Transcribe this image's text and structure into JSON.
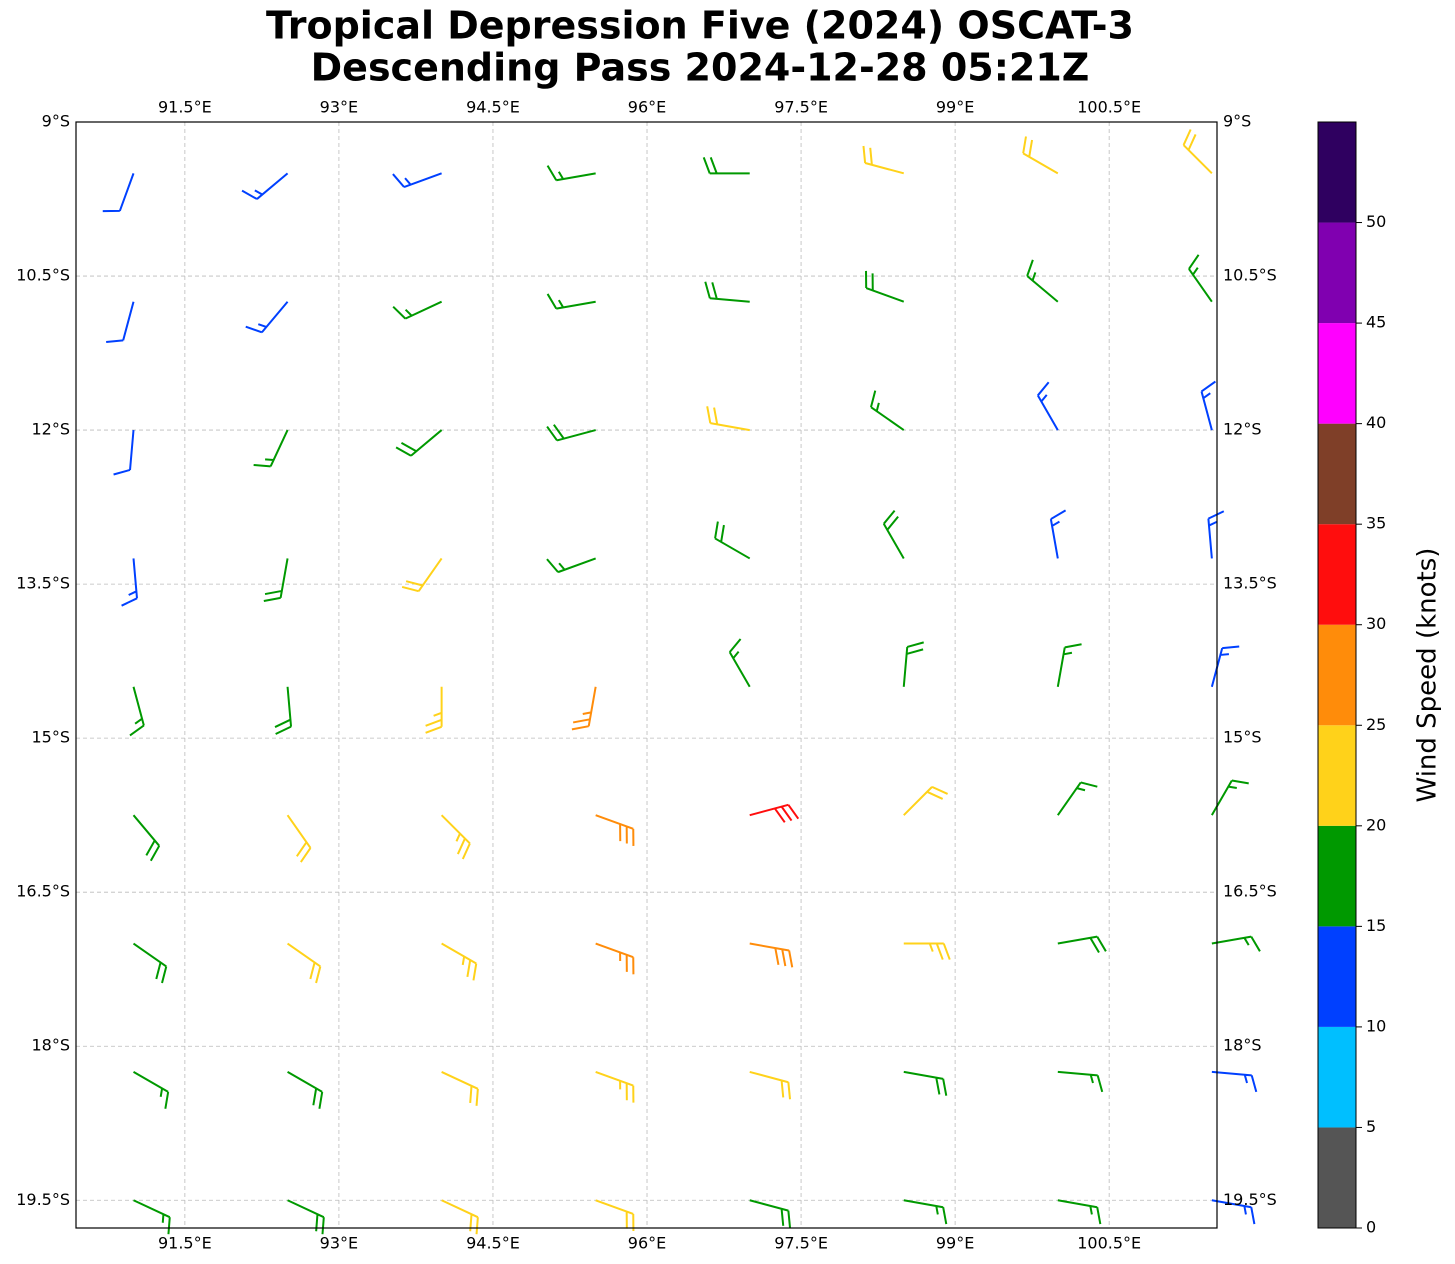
{
  "chart_data": {
    "type": "barbs",
    "title": [
      "Tropical Depression Five (2024) OSCAT-3",
      "Descending Pass 2024-12-28 05:21Z"
    ],
    "xlim": [
      90.44,
      101.55
    ],
    "ylim": [
      -19.77,
      -9
    ],
    "xticks": [
      {
        "value": 91.5,
        "label": "91.5°E"
      },
      {
        "value": 93,
        "label": "93°E"
      },
      {
        "value": 94.5,
        "label": "94.5°E"
      },
      {
        "value": 96,
        "label": "96°E"
      },
      {
        "value": 97.5,
        "label": "97.5°E"
      },
      {
        "value": 99,
        "label": "99°E"
      },
      {
        "value": 100.5,
        "label": "100.5°E"
      }
    ],
    "yticks": [
      {
        "value": -9,
        "label": "9°S"
      },
      {
        "value": -10.5,
        "label": "10.5°S"
      },
      {
        "value": -12,
        "label": "12°S"
      },
      {
        "value": -13.5,
        "label": "13.5°S"
      },
      {
        "value": -15,
        "label": "15°S"
      },
      {
        "value": -16.5,
        "label": "16.5°S"
      },
      {
        "value": -18,
        "label": "18°S"
      },
      {
        "value": -19.5,
        "label": "19.5°S"
      }
    ],
    "grid": true,
    "lons": [
      91,
      92.5,
      94,
      95.5,
      97,
      98.5,
      100,
      101.5
    ],
    "lats": [
      -9.5,
      -10.75,
      -12,
      -13.25,
      -14.5,
      -15.75,
      -17,
      -18.25,
      -19.5
    ],
    "speed": [
      [
        12,
        13,
        13,
        16,
        18,
        20,
        21,
        21
      ],
      [
        12,
        13,
        16,
        17,
        18,
        19,
        17,
        16
      ],
      [
        12,
        17,
        19,
        18,
        21,
        17,
        13,
        13
      ],
      [
        14,
        18,
        22,
        17,
        18,
        18,
        14,
        14
      ],
      [
        17,
        19,
        23,
        27,
        15,
        18,
        16,
        14
      ],
      [
        19,
        20,
        23,
        28,
        30,
        22,
        17,
        15
      ],
      [
        18,
        22,
        23,
        26,
        28,
        23,
        18,
        17
      ],
      [
        17,
        19,
        21,
        23,
        22,
        19,
        16,
        14
      ],
      [
        17,
        18,
        20,
        21,
        19,
        17,
        15,
        14
      ]
    ],
    "direction": [
      [
        200,
        230,
        250,
        260,
        270,
        285,
        300,
        315
      ],
      [
        195,
        220,
        245,
        260,
        275,
        290,
        310,
        325
      ],
      [
        185,
        205,
        230,
        255,
        280,
        305,
        330,
        345
      ],
      [
        175,
        190,
        215,
        250,
        300,
        330,
        350,
        355
      ],
      [
        165,
        175,
        180,
        190,
        330,
        5,
        10,
        15
      ],
      [
        140,
        145,
        135,
        110,
        75,
        45,
        35,
        30
      ],
      [
        125,
        125,
        120,
        110,
        100,
        90,
        80,
        80
      ],
      [
        120,
        120,
        115,
        110,
        105,
        100,
        95,
        95
      ],
      [
        115,
        115,
        115,
        110,
        105,
        100,
        100,
        100
      ]
    ],
    "colorbar": {
      "label": "Wind Speed (knots)",
      "bounds": [
        0,
        5,
        10,
        15,
        20,
        25,
        30,
        35,
        40,
        45,
        50,
        55
      ],
      "colors": [
        "#555555",
        "#00bfff",
        "#0040ff",
        "#009900",
        "#ffd21a",
        "#ff8c0a",
        "#ff0d0d",
        "#7f3f28",
        "#ff00ff",
        "#8000b0",
        "#2f0060"
      ],
      "ticks": [
        0,
        5,
        10,
        15,
        20,
        25,
        30,
        35,
        40,
        45,
        50
      ]
    }
  }
}
